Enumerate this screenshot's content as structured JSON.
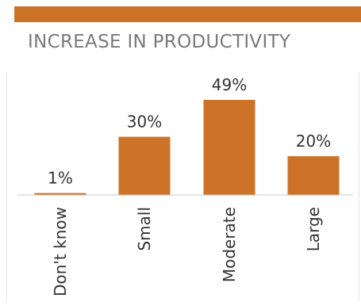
{
  "chart_data": {
    "type": "bar",
    "title": "INCREASE IN PRODUCTIVITY",
    "categories": [
      "Don't know",
      "Small",
      "Moderate",
      "Large"
    ],
    "values": [
      1,
      30,
      49,
      20
    ],
    "value_labels": [
      "1%",
      "30%",
      "49%",
      "20%"
    ],
    "ylim": [
      0,
      49
    ],
    "grid": false,
    "legend": "none",
    "bar_color": "#cc7328"
  }
}
